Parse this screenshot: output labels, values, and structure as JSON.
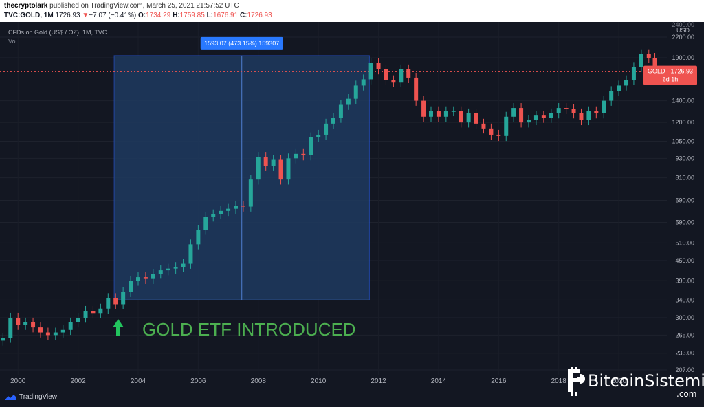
{
  "header": {
    "author": "thecryptolark",
    "published_text": "published on TradingView.com, March 25, 2021 21:57:52 UTC",
    "symbol": "TVC:GOLD, 1M",
    "last": "1726.93",
    "change_arrow": "▼",
    "change": "−7.07 (−0.41%)",
    "o_label": "O:",
    "o_value": "1734.29",
    "h_label": "H:",
    "h_value": "1759.85",
    "l_label": "L:",
    "l_value": "1676.91",
    "c_label": "C:",
    "c_value": "1726.93"
  },
  "legend": {
    "series_name": "CFDs on Gold (US$ / OZ), 1M, TVC",
    "volume_label": "Vol"
  },
  "price_axis": {
    "currency": "USD",
    "top_partial": "2400.00",
    "ticks": [
      "2200.00",
      "1900.00",
      "1400.00",
      "1200.00",
      "1050.00",
      "930.00",
      "810.00",
      "690.00",
      "590.00",
      "510.00",
      "450.00",
      "390.00",
      "340.00",
      "300.00",
      "265.00",
      "233.00",
      "207.00"
    ],
    "last_price_tag": "GOLD · 1726.93",
    "countdown": "6d 1h"
  },
  "time_axis": {
    "ticks": [
      "2000",
      "2002",
      "2004",
      "2006",
      "2008",
      "2010",
      "2012",
      "2014",
      "2016",
      "2018",
      "2020"
    ]
  },
  "measure_box": {
    "label": "1593.07 (473.15%) 159307"
  },
  "annotation": {
    "arrow_icon": "up-arrow-icon",
    "text": "GOLD ETF INTRODUCED",
    "color": "#4caf50"
  },
  "footer": {
    "brand": "TradingView"
  },
  "watermark": {
    "name": "BitcoinSistemi",
    "suffix": ".com"
  },
  "colors": {
    "background": "#131722",
    "up": "#26a69a",
    "down": "#ef5350",
    "measure_fill": "#1e3a5f",
    "measure_line": "#2962ff"
  },
  "chart_data": {
    "type": "candlestick",
    "title": "CFDs on Gold (US$ / OZ), 1M, TVC",
    "y_scale": "log",
    "ylim": [
      200,
      2450
    ],
    "xlim": [
      1999.4,
      2021.6
    ],
    "x": [
      1999.5,
      1999.75,
      2000,
      2000.25,
      2000.5,
      2000.75,
      2001,
      2001.25,
      2001.5,
      2001.75,
      2002,
      2002.25,
      2002.5,
      2002.75,
      2003,
      2003.25,
      2003.5,
      2003.75,
      2004,
      2004.25,
      2004.5,
      2004.75,
      2005,
      2005.25,
      2005.5,
      2005.75,
      2006,
      2006.25,
      2006.5,
      2006.75,
      2007,
      2007.25,
      2007.5,
      2007.75,
      2008,
      2008.25,
      2008.5,
      2008.75,
      2009,
      2009.25,
      2009.5,
      2009.75,
      2010,
      2010.25,
      2010.5,
      2010.75,
      2011,
      2011.25,
      2011.5,
      2011.75,
      2012,
      2012.25,
      2012.5,
      2012.75,
      2013,
      2013.25,
      2013.5,
      2013.75,
      2014,
      2014.25,
      2014.5,
      2014.75,
      2015,
      2015.25,
      2015.5,
      2015.75,
      2016,
      2016.25,
      2016.5,
      2016.75,
      2017,
      2017.25,
      2017.5,
      2017.75,
      2018,
      2018.25,
      2018.5,
      2018.75,
      2019,
      2019.25,
      2019.5,
      2019.75,
      2020,
      2020.25,
      2020.5,
      2020.75,
      2021,
      2021.2
    ],
    "close": [
      260,
      300,
      285,
      290,
      280,
      270,
      265,
      270,
      275,
      290,
      300,
      315,
      310,
      320,
      345,
      330,
      360,
      390,
      400,
      395,
      410,
      420,
      425,
      430,
      440,
      505,
      560,
      615,
      625,
      640,
      650,
      665,
      660,
      800,
      940,
      880,
      920,
      800,
      930,
      960,
      950,
      1080,
      1100,
      1190,
      1240,
      1360,
      1420,
      1560,
      1630,
      1830,
      1750,
      1620,
      1600,
      1750,
      1650,
      1400,
      1250,
      1300,
      1250,
      1300,
      1300,
      1200,
      1280,
      1190,
      1150,
      1100,
      1090,
      1250,
      1330,
      1200,
      1220,
      1260,
      1240,
      1280,
      1330,
      1320,
      1280,
      1220,
      1300,
      1280,
      1400,
      1500,
      1560,
      1620,
      1780,
      1950,
      1900,
      1726.93
    ],
    "highlight_range": {
      "start": 2003.2,
      "end": 2011.7,
      "low": 340,
      "high": 1930,
      "change": 1593.07,
      "change_percent": 473.15,
      "ticks": 159307
    },
    "reference_line": 285
  }
}
